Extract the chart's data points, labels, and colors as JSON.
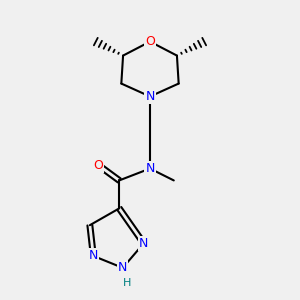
{
  "bg_color": "#f0f0f0",
  "bond_color": "#000000",
  "N_color": "#0000ff",
  "O_color": "#ff0000",
  "H_color": "#008080",
  "line_width": 1.5,
  "double_lw": 1.5,
  "font_size": 9,
  "figsize": [
    3.0,
    3.0
  ],
  "dpi": 100,
  "xlim": [
    2.5,
    8.5
  ],
  "ylim": [
    1.0,
    9.5
  ]
}
